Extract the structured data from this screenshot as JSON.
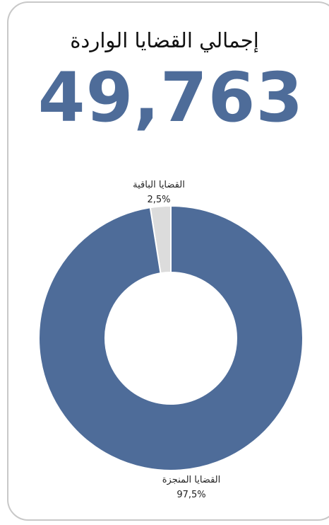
{
  "header": {
    "title": "إجمالي القضايا الواردة",
    "total": "49,763"
  },
  "chart_data": {
    "type": "pie",
    "subtype": "donut",
    "title": "إجمالي القضايا الواردة",
    "slices": [
      {
        "label": "القضايا الباقية",
        "value": 2.5,
        "value_label": "2,5%",
        "color": "#dcdcdc",
        "label_anchor": "top"
      },
      {
        "label": "القضايا المنجزة",
        "value": 97.5,
        "value_label": "97,5%",
        "color": "#4e6c99",
        "label_anchor": "bottom"
      }
    ],
    "legend": "none"
  }
}
